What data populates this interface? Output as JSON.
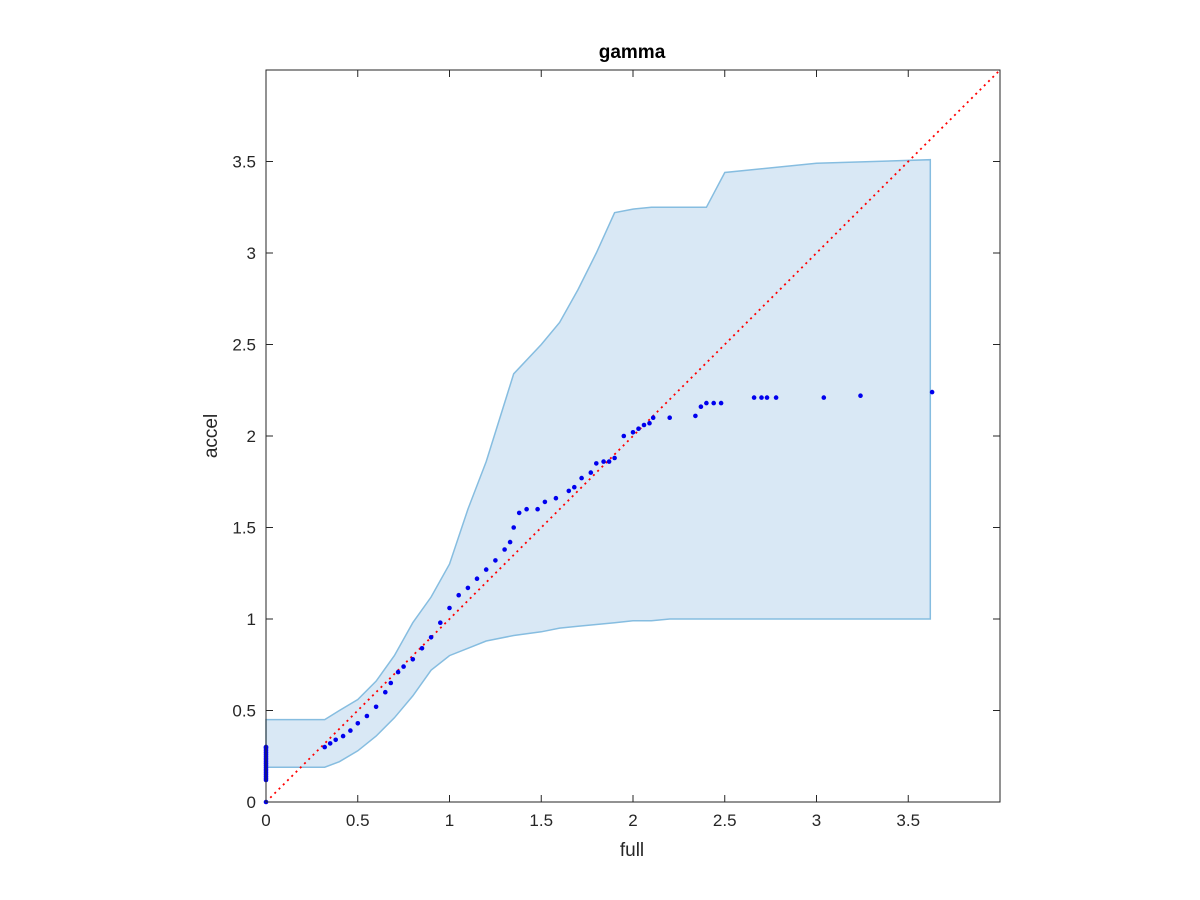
{
  "chart_data": {
    "type": "scatter",
    "title": "gamma",
    "xlabel": "full",
    "ylabel": "accel",
    "xlim": [
      0,
      4
    ],
    "ylim": [
      0,
      4
    ],
    "xticks": [
      0,
      0.5,
      1,
      1.5,
      2,
      2.5,
      3,
      3.5
    ],
    "yticks": [
      0,
      0.5,
      1,
      1.5,
      2,
      2.5,
      3,
      3.5
    ],
    "grid": false,
    "colors": {
      "points": "#0000ee",
      "band_fill": "#d9e8f5",
      "band_edge": "#86bde0",
      "reference": "#ff0000"
    },
    "reference_line": {
      "style": "dotted",
      "from": [
        0,
        0
      ],
      "to": [
        4,
        4
      ]
    },
    "band": {
      "x": [
        0,
        0.32,
        0.4,
        0.5,
        0.6,
        0.7,
        0.8,
        0.9,
        1.0,
        1.1,
        1.2,
        1.35,
        1.5,
        1.6,
        1.7,
        1.8,
        1.9,
        2.0,
        2.1,
        2.2,
        2.4,
        2.5,
        3.0,
        3.62
      ],
      "upper": [
        0.45,
        0.45,
        0.5,
        0.56,
        0.66,
        0.8,
        0.98,
        1.12,
        1.3,
        1.6,
        1.86,
        2.34,
        2.5,
        2.62,
        2.8,
        3.0,
        3.22,
        3.24,
        3.25,
        3.25,
        3.25,
        3.44,
        3.49,
        3.51
      ],
      "lower": [
        0.19,
        0.19,
        0.22,
        0.28,
        0.36,
        0.46,
        0.58,
        0.72,
        0.8,
        0.84,
        0.88,
        0.91,
        0.93,
        0.95,
        0.96,
        0.97,
        0.98,
        0.99,
        0.99,
        1.0,
        1.0,
        1.0,
        1.0,
        1.0
      ]
    },
    "series": [
      {
        "x": [
          0,
          0,
          0,
          0,
          0,
          0,
          0,
          0,
          0,
          0,
          0,
          0,
          0,
          0,
          0,
          0,
          0,
          0,
          0,
          0,
          0,
          0.32,
          0.35,
          0.38,
          0.42,
          0.46,
          0.5,
          0.55,
          0.6,
          0.65,
          0.68,
          0.72,
          0.75,
          0.8,
          0.85,
          0.9,
          0.95,
          1.0,
          1.05,
          1.1,
          1.15,
          1.2,
          1.25,
          1.3,
          1.33,
          1.35,
          1.38,
          1.42,
          1.48,
          1.52,
          1.58,
          1.65,
          1.68,
          1.72,
          1.77,
          1.8,
          1.84,
          1.87,
          1.9,
          1.95,
          2.0,
          2.03,
          2.06,
          2.09,
          2.11,
          2.2,
          2.34,
          2.37,
          2.4,
          2.44,
          2.48,
          2.66,
          2.7,
          2.73,
          2.78,
          3.04,
          3.24,
          3.63
        ],
        "y": [
          0.13,
          0.15,
          0.17,
          0.19,
          0.21,
          0.23,
          0.25,
          0.27,
          0.29,
          0.3,
          0.14,
          0.16,
          0.18,
          0.2,
          0.22,
          0.24,
          0.26,
          0.28,
          0.12,
          0.3,
          0.0,
          0.3,
          0.32,
          0.34,
          0.36,
          0.39,
          0.43,
          0.47,
          0.52,
          0.6,
          0.65,
          0.71,
          0.74,
          0.78,
          0.84,
          0.9,
          0.98,
          1.06,
          1.13,
          1.17,
          1.22,
          1.27,
          1.32,
          1.38,
          1.42,
          1.5,
          1.58,
          1.6,
          1.6,
          1.64,
          1.66,
          1.7,
          1.72,
          1.77,
          1.8,
          1.85,
          1.86,
          1.86,
          1.88,
          2.0,
          2.02,
          2.04,
          2.06,
          2.07,
          2.1,
          2.1,
          2.11,
          2.16,
          2.18,
          2.18,
          2.18,
          2.21,
          2.21,
          2.21,
          2.21,
          2.21,
          2.22,
          2.24
        ]
      }
    ]
  }
}
